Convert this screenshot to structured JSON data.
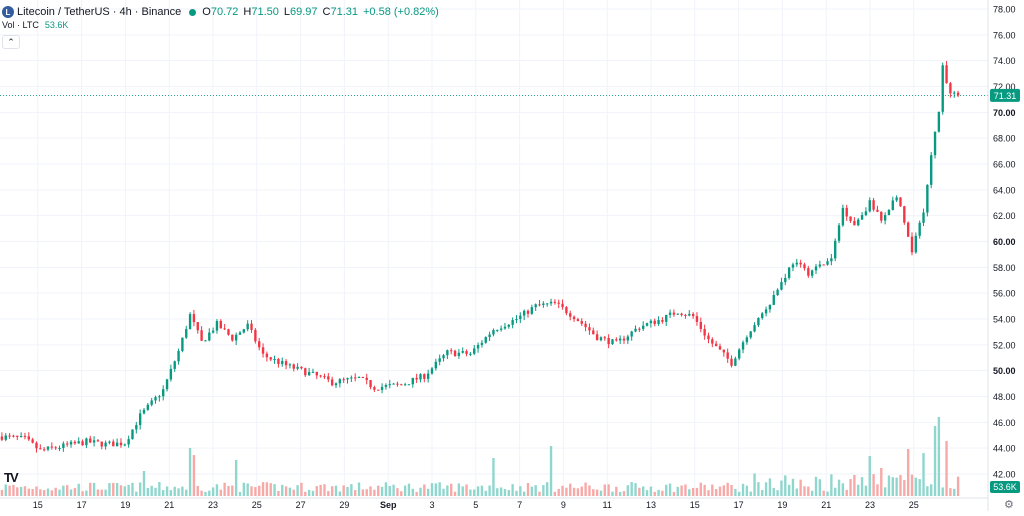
{
  "legend": {
    "symbol_icon": "L",
    "title": "Litecoin / TetherUS · 4h · Binance",
    "open_label": "O",
    "open": "70.72",
    "high_label": "H",
    "high": "71.50",
    "low_label": "L",
    "low": "69.97",
    "close_label": "C",
    "close": "71.31",
    "change": "+0.58 (+0.82%)"
  },
  "volume_legend": {
    "name": "Vol · LTC",
    "value": "53.6K"
  },
  "collapse_glyph": "⌃",
  "logo_text": "TV",
  "price_badge": "71.31",
  "volume_badge": "53.6K",
  "colors": {
    "up": "#089981",
    "down": "#f23645",
    "up_vol": "#8fd6cd",
    "down_vol": "#f7a9a7",
    "badge": "#089981"
  },
  "chart_data": {
    "type": "candlestick",
    "y_ticks": [
      "78.00",
      "76.00",
      "74.00",
      "72.00",
      "70.00",
      "68.00",
      "66.00",
      "64.00",
      "62.00",
      "60.00",
      "58.00",
      "56.00",
      "54.00",
      "52.00",
      "50.00",
      "48.00",
      "46.00",
      "44.00",
      "42.00"
    ],
    "ylim": [
      41,
      78.6
    ],
    "x_ticks": [
      "13",
      "15",
      "17",
      "19",
      "21",
      "23",
      "25",
      "27",
      "29",
      "Sep",
      "3",
      "5",
      "7",
      "9",
      "11",
      "13",
      "15",
      "17",
      "19",
      "21",
      "23",
      "25"
    ],
    "bold_y_ticks": [
      "70.00",
      "60.00",
      "50.00"
    ],
    "last_price": 71.31,
    "anchors": [
      {
        "t": 0,
        "p": 44.9
      },
      {
        "t": 6,
        "p": 44.7
      },
      {
        "t": 10,
        "p": 43.8
      },
      {
        "t": 15,
        "p": 44.1
      },
      {
        "t": 22,
        "p": 44.5
      },
      {
        "t": 27,
        "p": 44.3
      },
      {
        "t": 32,
        "p": 44.4
      },
      {
        "t": 36,
        "p": 46.5
      },
      {
        "t": 42,
        "p": 48.5
      },
      {
        "t": 46,
        "p": 51.5
      },
      {
        "t": 49,
        "p": 54.3
      },
      {
        "t": 52,
        "p": 52.2
      },
      {
        "t": 56,
        "p": 53.6
      },
      {
        "t": 60,
        "p": 52.5
      },
      {
        "t": 64,
        "p": 53.5
      },
      {
        "t": 68,
        "p": 51.2
      },
      {
        "t": 74,
        "p": 50.4
      },
      {
        "t": 80,
        "p": 49.8
      },
      {
        "t": 86,
        "p": 49.1
      },
      {
        "t": 93,
        "p": 49.4
      },
      {
        "t": 97,
        "p": 48.7
      },
      {
        "t": 104,
        "p": 48.9
      },
      {
        "t": 110,
        "p": 49.6
      },
      {
        "t": 116,
        "p": 51.4
      },
      {
        "t": 122,
        "p": 51.3
      },
      {
        "t": 128,
        "p": 53.2
      },
      {
        "t": 134,
        "p": 54.0
      },
      {
        "t": 139,
        "p": 55.0
      },
      {
        "t": 144,
        "p": 55.2
      },
      {
        "t": 149,
        "p": 54.2
      },
      {
        "t": 155,
        "p": 52.6
      },
      {
        "t": 160,
        "p": 52.1
      },
      {
        "t": 166,
        "p": 53.4
      },
      {
        "t": 172,
        "p": 54.0
      },
      {
        "t": 176,
        "p": 54.6
      },
      {
        "t": 180,
        "p": 54.2
      },
      {
        "t": 184,
        "p": 52.4
      },
      {
        "t": 190,
        "p": 50.6
      },
      {
        "t": 194,
        "p": 52.8
      },
      {
        "t": 200,
        "p": 55.3
      },
      {
        "t": 206,
        "p": 58.4
      },
      {
        "t": 210,
        "p": 57.6
      },
      {
        "t": 216,
        "p": 58.6
      },
      {
        "t": 219,
        "p": 62.6
      },
      {
        "t": 222,
        "p": 61.3
      },
      {
        "t": 226,
        "p": 63.0
      },
      {
        "t": 229,
        "p": 61.6
      },
      {
        "t": 233,
        "p": 63.6
      },
      {
        "t": 237,
        "p": 59.2
      },
      {
        "t": 240,
        "p": 62.4
      },
      {
        "t": 242,
        "p": 66.5
      },
      {
        "t": 244,
        "p": 70.2
      },
      {
        "t": 245,
        "p": 73.4
      },
      {
        "t": 247,
        "p": 71.4
      },
      {
        "t": 249,
        "p": 71.31
      }
    ],
    "candle_count": 250,
    "volume_spikes": {
      "49": 48,
      "50": 41,
      "37": 25,
      "61": 36,
      "128": 38,
      "143": 50,
      "226": 40,
      "236": 47,
      "244": 79,
      "243": 70,
      "246": 55,
      "240": 43,
      "229": 28
    }
  }
}
